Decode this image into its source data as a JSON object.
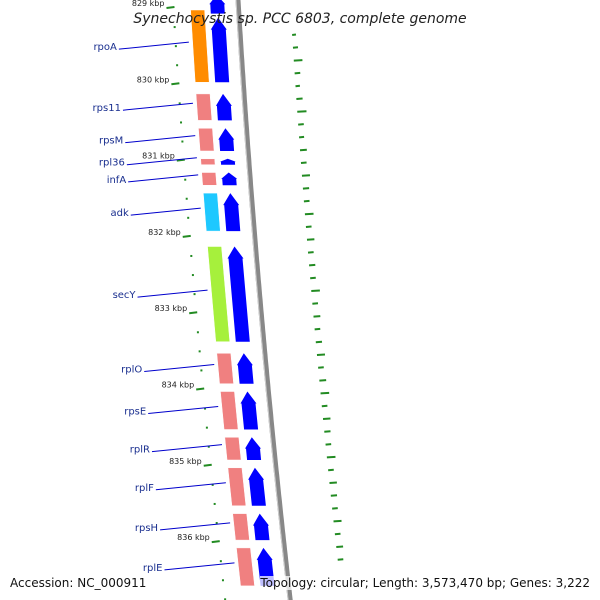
{
  "title": "Synechocystis sp. PCC 6803, complete genome",
  "footer": {
    "accession": "Accession: NC_000911",
    "topology": "Topology: circular; Length: 3,573,470 bp; Genes: 3,222"
  },
  "colors": {
    "forward_gene": "#0000ff",
    "ribosomal_gene": "#f08080",
    "rpoA_gene": "#ff8c00",
    "adk_gene": "#1ec8ff",
    "secY_gene": "#a6f03c",
    "backbone": "#888888",
    "gc_skew": "#228b22",
    "label_line": "#0000cc"
  },
  "genes": [
    {
      "name": "rpoA",
      "strand": "reverse",
      "start_kbp": 829.0,
      "end_kbp": 830.0,
      "color": "#ff8c00"
    },
    {
      "name": "rps11",
      "strand": "reverse",
      "start_kbp": 830.1,
      "end_kbp": 830.5,
      "color": "#f08080"
    },
    {
      "name": "rpsM",
      "strand": "reverse",
      "start_kbp": 830.55,
      "end_kbp": 830.9,
      "color": "#f08080"
    },
    {
      "name": "rpl36",
      "strand": "reverse",
      "start_kbp": 830.95,
      "end_kbp": 831.08,
      "color": "#f08080"
    },
    {
      "name": "infA",
      "strand": "reverse",
      "start_kbp": 831.13,
      "end_kbp": 831.35,
      "color": "#f08080"
    },
    {
      "name": "adk",
      "strand": "reverse",
      "start_kbp": 831.4,
      "end_kbp": 831.95,
      "color": "#1ec8ff"
    },
    {
      "name": "secY",
      "strand": "reverse",
      "start_kbp": 832.1,
      "end_kbp": 833.4,
      "color": "#a6f03c"
    },
    {
      "name": "rplO",
      "strand": "reverse",
      "start_kbp": 833.5,
      "end_kbp": 833.95,
      "color": "#f08080"
    },
    {
      "name": "rpsE",
      "strand": "reverse",
      "start_kbp": 834.0,
      "end_kbp": 834.55,
      "color": "#f08080"
    },
    {
      "name": "rplR",
      "strand": "reverse",
      "start_kbp": 834.6,
      "end_kbp": 834.95,
      "color": "#f08080"
    },
    {
      "name": "rplF",
      "strand": "reverse",
      "start_kbp": 835.0,
      "end_kbp": 835.55,
      "color": "#f08080"
    },
    {
      "name": "rpsH",
      "strand": "reverse",
      "start_kbp": 835.6,
      "end_kbp": 836.0,
      "color": "#f08080"
    },
    {
      "name": "rplE",
      "strand": "reverse",
      "start_kbp": 836.05,
      "end_kbp": 836.6,
      "color": "#f08080"
    }
  ],
  "forward_arrows": [
    {
      "start_kbp": 828.8,
      "end_kbp": 829.1
    },
    {
      "start_kbp": 829.1,
      "end_kbp": 830.0
    },
    {
      "start_kbp": 830.1,
      "end_kbp": 830.5
    },
    {
      "start_kbp": 830.55,
      "end_kbp": 830.9
    },
    {
      "start_kbp": 830.95,
      "end_kbp": 831.08
    },
    {
      "start_kbp": 831.13,
      "end_kbp": 831.35
    },
    {
      "start_kbp": 831.4,
      "end_kbp": 831.95
    },
    {
      "start_kbp": 832.1,
      "end_kbp": 833.4
    },
    {
      "start_kbp": 833.5,
      "end_kbp": 833.95
    },
    {
      "start_kbp": 834.0,
      "end_kbp": 834.55
    },
    {
      "start_kbp": 834.6,
      "end_kbp": 834.95
    },
    {
      "start_kbp": 835.0,
      "end_kbp": 835.55
    },
    {
      "start_kbp": 835.6,
      "end_kbp": 836.0
    },
    {
      "start_kbp": 836.05,
      "end_kbp": 836.6
    }
  ],
  "kbp_ticks": [
    {
      "label": "829 kbp",
      "pos_kbp": 829
    },
    {
      "label": "830 kbp",
      "pos_kbp": 830
    },
    {
      "label": "831 kbp",
      "pos_kbp": 831
    },
    {
      "label": "832 kbp",
      "pos_kbp": 832
    },
    {
      "label": "833 kbp",
      "pos_kbp": 833
    },
    {
      "label": "834 kbp",
      "pos_kbp": 834
    },
    {
      "label": "835 kbp",
      "pos_kbp": 835
    },
    {
      "label": "836 kbp",
      "pos_kbp": 836
    }
  ],
  "skew_values": [
    0.15,
    0.25,
    0.55,
    0.3,
    0.2,
    0.35,
    0.6,
    0.3,
    0.25,
    0.4,
    0.3,
    0.5,
    0.35,
    0.3,
    0.55,
    0.3,
    0.45,
    0.3,
    0.35,
    0.3,
    0.55,
    0.3,
    0.4,
    0.3,
    0.35,
    0.5,
    0.3,
    0.4,
    0.55,
    0.3,
    0.45,
    0.35,
    0.3,
    0.55,
    0.3,
    0.45,
    0.35,
    0.3,
    0.5,
    0.3,
    0.4,
    0.3
  ]
}
